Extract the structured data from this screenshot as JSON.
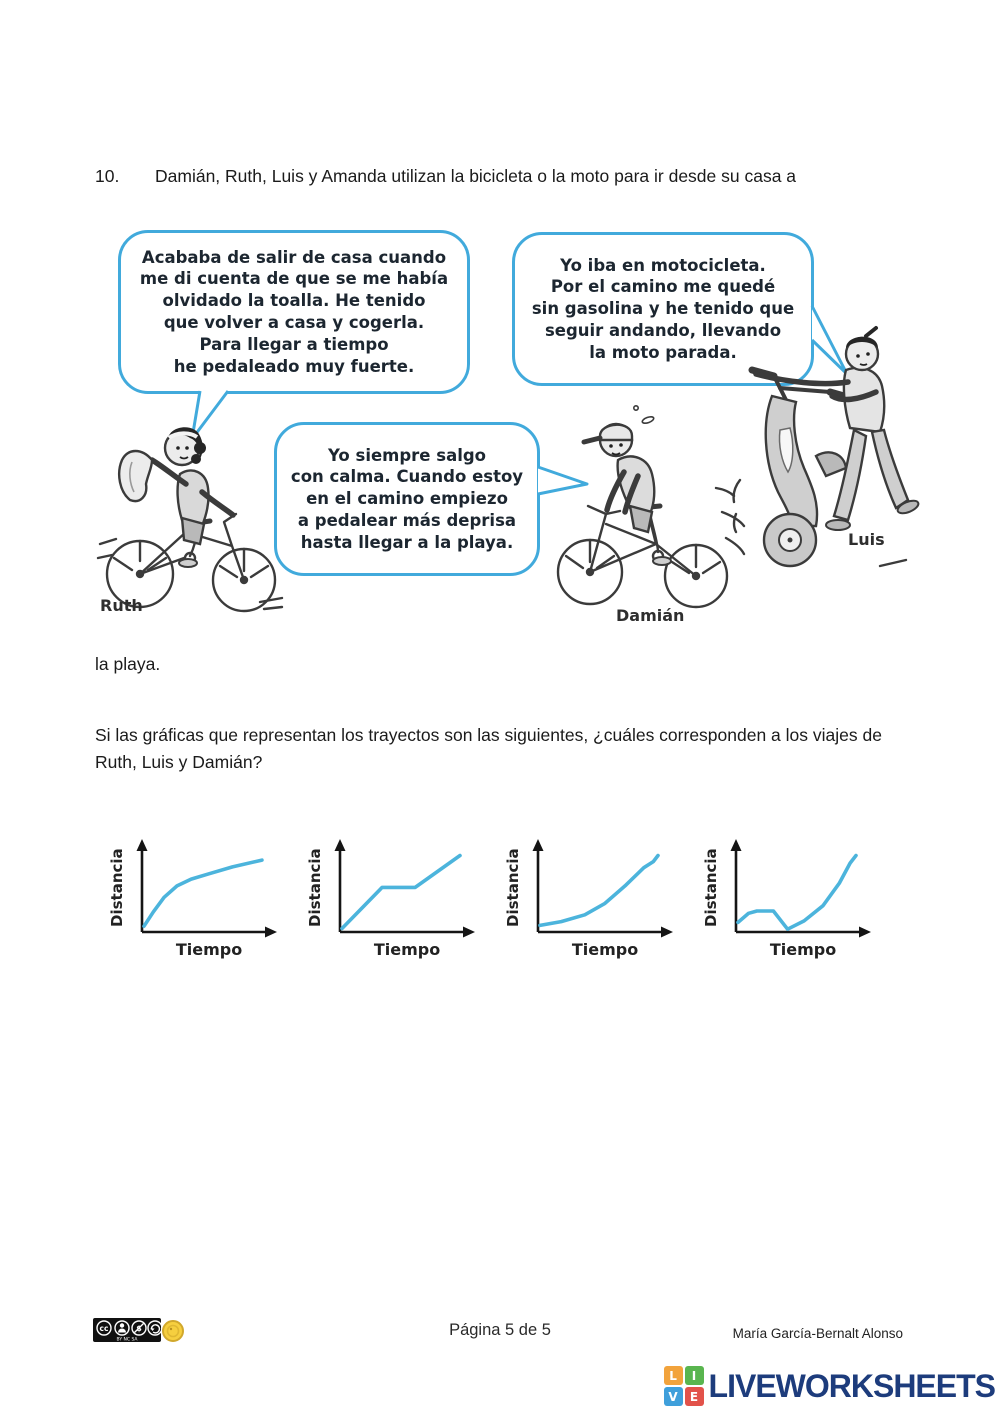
{
  "question": {
    "number": "10.",
    "text": "Damián, Ruth, Luis y Amanda utilizan la bicicleta o la moto para ir desde su casa a",
    "continuation": "la playa.",
    "prompt": "Si las gráficas que representan los trayectos son las siguientes, ¿cuáles corresponden a los viajes de Ruth, Luis y Damián?"
  },
  "illustration": {
    "bubble_border_color": "#41aadc",
    "bubbles": [
      {
        "speaker": "Ruth",
        "text": "Acababa de salir de casa cuando\nme di cuenta de que se me había\nolvidado la toalla. He tenido\nque volver a casa y cogerla.\nPara llegar a tiempo\nhe pedaleado muy fuerte."
      },
      {
        "speaker": "Luis",
        "text": "Yo iba en motocicleta.\nPor el camino me quedé\nsin gasolina y he tenido que\nseguir andando, llevando\nla moto parada."
      },
      {
        "speaker": "Damián",
        "text": "Yo siempre salgo\ncon calma. Cuando estoy\nen el camino empiezo\na pedalear más deprisa\nhasta llegar a la playa."
      }
    ],
    "labels": {
      "ruth": "Ruth",
      "damian": "Damián",
      "luis": "Luis"
    }
  },
  "chart_data": [
    {
      "type": "line",
      "ylabel": "Distancia",
      "xlabel": "Tiempo",
      "line_color": "#4cb4dc",
      "x_range": [
        0,
        1
      ],
      "y_range": [
        0,
        1
      ],
      "grid": false,
      "points": [
        [
          0,
          0.05
        ],
        [
          0.08,
          0.24
        ],
        [
          0.17,
          0.43
        ],
        [
          0.28,
          0.58
        ],
        [
          0.4,
          0.67
        ],
        [
          0.55,
          0.74
        ],
        [
          0.75,
          0.83
        ],
        [
          1,
          0.92
        ]
      ]
    },
    {
      "type": "line",
      "ylabel": "Distancia",
      "xlabel": "Tiempo",
      "line_color": "#4cb4dc",
      "x_range": [
        0,
        1
      ],
      "y_range": [
        0,
        1
      ],
      "grid": false,
      "points": [
        [
          0,
          0.02
        ],
        [
          0.34,
          0.56
        ],
        [
          0.62,
          0.56
        ],
        [
          1,
          0.98
        ]
      ]
    },
    {
      "type": "line",
      "ylabel": "Distancia",
      "xlabel": "Tiempo",
      "line_color": "#4cb4dc",
      "x_range": [
        0,
        1
      ],
      "y_range": [
        0,
        1
      ],
      "grid": false,
      "points": [
        [
          0,
          0.06
        ],
        [
          0.18,
          0.11
        ],
        [
          0.38,
          0.2
        ],
        [
          0.55,
          0.35
        ],
        [
          0.72,
          0.58
        ],
        [
          0.88,
          0.82
        ],
        [
          0.96,
          0.9
        ],
        [
          1,
          0.98
        ]
      ]
    },
    {
      "type": "line",
      "ylabel": "Distancia",
      "xlabel": "Tiempo",
      "line_color": "#4cb4dc",
      "x_range": [
        0,
        1
      ],
      "y_range": [
        0,
        1
      ],
      "grid": false,
      "points": [
        [
          0,
          0.1
        ],
        [
          0.09,
          0.22
        ],
        [
          0.16,
          0.25
        ],
        [
          0.3,
          0.25
        ],
        [
          0.42,
          0.01
        ],
        [
          0.56,
          0.12
        ],
        [
          0.72,
          0.32
        ],
        [
          0.86,
          0.62
        ],
        [
          0.95,
          0.88
        ],
        [
          1,
          0.98
        ]
      ]
    }
  ],
  "footer": {
    "page_text": "Página 5 de 5",
    "author": "María García-Bernalt  Alonso",
    "license": {
      "cc": "cc",
      "terms": "BY NC SA"
    },
    "logo": {
      "brand": "LIVEWORKSHEETS",
      "brand_color": "#1d3c7c",
      "squares": [
        {
          "letter": "L",
          "color": "#f2a33c"
        },
        {
          "letter": "I",
          "color": "#59b54f"
        },
        {
          "letter": "V",
          "color": "#3f9fdb"
        },
        {
          "letter": "E",
          "color": "#e2524a"
        }
      ]
    }
  }
}
